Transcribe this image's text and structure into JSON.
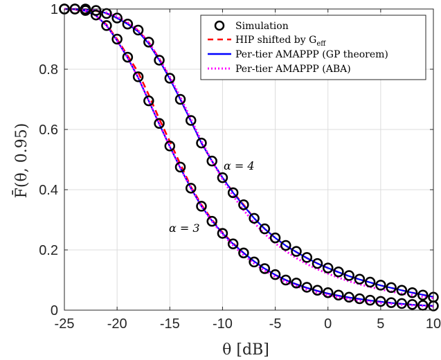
{
  "chart_data": {
    "type": "line",
    "xlabel": "θ [dB]",
    "ylabel": "F̄(θ, 0.95)",
    "xlim": [
      -25,
      10
    ],
    "ylim": [
      0,
      1
    ],
    "xticks": [
      -25,
      -20,
      -15,
      -10,
      -5,
      0,
      5,
      10
    ],
    "yticks": [
      0,
      0.2,
      0.4,
      0.6,
      0.8,
      1
    ],
    "xtick_labels": [
      "-25",
      "-20",
      "-15",
      "-10",
      "-5",
      "0",
      "5",
      "10"
    ],
    "ytick_labels": [
      "0",
      "0.2",
      "0.4",
      "0.6",
      "0.8",
      "1"
    ],
    "grid": true,
    "legend_position": "top-right",
    "legend": [
      {
        "label": "Simulation",
        "style": "circle",
        "color": "#000000"
      },
      {
        "label": "HIP shifted by G",
        "sub": "eff",
        "style": "dashed",
        "color": "#ff0000"
      },
      {
        "label": "Per-tier AMAPPP (GP theorem)",
        "style": "solid",
        "color": "#0000ff"
      },
      {
        "label": "Per-tier AMAPPP (ABA)",
        "style": "dotted",
        "color": "#ff00ff"
      }
    ],
    "annotations": [
      {
        "text": "α = 4",
        "x": -9.2,
        "y": 0.47
      },
      {
        "text": "α = 3",
        "x": -14.2,
        "y": 0.27
      }
    ],
    "x": [
      -25,
      -24,
      -23,
      -22,
      -21,
      -20,
      -19,
      -18,
      -17,
      -16,
      -15,
      -14,
      -13,
      -12,
      -11,
      -10,
      -9,
      -8,
      -7,
      -6,
      -5,
      -4,
      -3,
      -2,
      -1,
      0,
      1,
      2,
      3,
      4,
      5,
      6,
      7,
      8,
      9,
      10
    ],
    "series": [
      {
        "name": "Simulation α = 4",
        "values": [
          1.0,
          1.0,
          1.0,
          0.995,
          0.985,
          0.97,
          0.95,
          0.93,
          0.89,
          0.83,
          0.77,
          0.7,
          0.63,
          0.555,
          0.495,
          0.44,
          0.39,
          0.35,
          0.305,
          0.27,
          0.24,
          0.215,
          0.195,
          0.175,
          0.155,
          0.14,
          0.127,
          0.115,
          0.103,
          0.093,
          0.083,
          0.075,
          0.066,
          0.058,
          0.05,
          0.043
        ]
      },
      {
        "name": "Simulation α = 3",
        "values": [
          1.0,
          1.0,
          0.995,
          0.98,
          0.945,
          0.9,
          0.84,
          0.775,
          0.695,
          0.62,
          0.545,
          0.475,
          0.405,
          0.345,
          0.295,
          0.255,
          0.22,
          0.19,
          0.16,
          0.138,
          0.118,
          0.1,
          0.09,
          0.076,
          0.066,
          0.058,
          0.05,
          0.043,
          0.038,
          0.033,
          0.029,
          0.025,
          0.022,
          0.019,
          0.016,
          0.014
        ]
      },
      {
        "name": "HIP α = 4",
        "values": [
          1.0,
          1.0,
          0.998,
          0.994,
          0.985,
          0.97,
          0.952,
          0.928,
          0.89,
          0.835,
          0.77,
          0.7,
          0.628,
          0.555,
          0.495,
          0.44,
          0.392,
          0.35,
          0.305,
          0.27,
          0.24,
          0.214,
          0.193,
          0.173,
          0.155,
          0.14,
          0.126,
          0.113,
          0.102,
          0.092,
          0.082,
          0.074,
          0.066,
          0.058,
          0.051,
          0.044
        ]
      },
      {
        "name": "HIP α = 3",
        "values": [
          1.0,
          0.998,
          0.993,
          0.978,
          0.948,
          0.9,
          0.845,
          0.79,
          0.715,
          0.635,
          0.56,
          0.485,
          0.41,
          0.35,
          0.3,
          0.258,
          0.222,
          0.19,
          0.162,
          0.138,
          0.117,
          0.1,
          0.086,
          0.074,
          0.064,
          0.055,
          0.048,
          0.042,
          0.037,
          0.032,
          0.028,
          0.024,
          0.021,
          0.018,
          0.016,
          0.014
        ]
      },
      {
        "name": "GP α = 4",
        "values": [
          1.0,
          1.0,
          0.999,
          0.995,
          0.986,
          0.97,
          0.95,
          0.925,
          0.885,
          0.83,
          0.768,
          0.7,
          0.628,
          0.555,
          0.495,
          0.44,
          0.39,
          0.347,
          0.305,
          0.27,
          0.24,
          0.214,
          0.193,
          0.173,
          0.155,
          0.14,
          0.126,
          0.113,
          0.102,
          0.092,
          0.082,
          0.074,
          0.066,
          0.058,
          0.051,
          0.044
        ]
      },
      {
        "name": "GP α = 3",
        "values": [
          1.0,
          0.999,
          0.994,
          0.978,
          0.945,
          0.895,
          0.838,
          0.772,
          0.695,
          0.618,
          0.543,
          0.472,
          0.405,
          0.345,
          0.297,
          0.255,
          0.22,
          0.19,
          0.162,
          0.138,
          0.117,
          0.1,
          0.086,
          0.074,
          0.064,
          0.055,
          0.048,
          0.042,
          0.037,
          0.032,
          0.028,
          0.024,
          0.021,
          0.018,
          0.016,
          0.014
        ]
      },
      {
        "name": "ABA α = 4",
        "values": [
          1.0,
          1.0,
          0.999,
          0.996,
          0.988,
          0.975,
          0.955,
          0.93,
          0.89,
          0.835,
          0.775,
          0.708,
          0.635,
          0.562,
          0.495,
          0.435,
          0.38,
          0.332,
          0.29,
          0.253,
          0.222,
          0.196,
          0.173,
          0.153,
          0.136,
          0.121,
          0.108,
          0.096,
          0.086,
          0.077,
          0.069,
          0.062,
          0.055,
          0.05,
          0.044,
          0.04
        ]
      },
      {
        "name": "ABA α = 3",
        "values": [
          1.0,
          0.999,
          0.994,
          0.978,
          0.945,
          0.895,
          0.838,
          0.772,
          0.695,
          0.618,
          0.543,
          0.472,
          0.405,
          0.345,
          0.295,
          0.252,
          0.215,
          0.183,
          0.155,
          0.131,
          0.111,
          0.094,
          0.08,
          0.068,
          0.058,
          0.05,
          0.043,
          0.037,
          0.032,
          0.028,
          0.024,
          0.021,
          0.018,
          0.016,
          0.014,
          0.012
        ]
      }
    ]
  }
}
